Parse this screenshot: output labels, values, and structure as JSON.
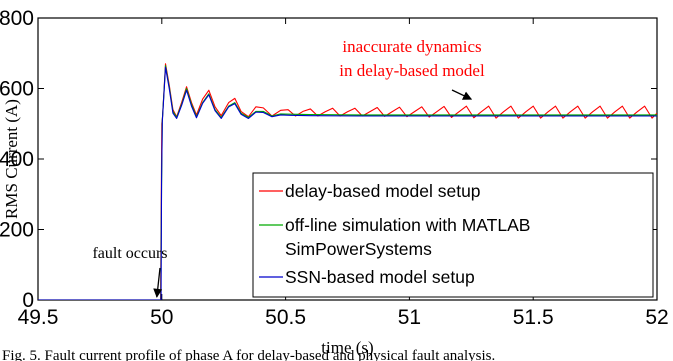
{
  "chart_data": {
    "type": "line",
    "title": "",
    "xlabel": "time (s)",
    "ylabel": "RMS Current (A)",
    "xlim": [
      49.5,
      52
    ],
    "ylim": [
      0,
      800
    ],
    "xticks": [
      49.5,
      50,
      50.5,
      51,
      51.5,
      52
    ],
    "yticks": [
      0,
      200,
      400,
      600,
      800
    ],
    "xtick_labels": [
      "49.5",
      "50",
      "50.5",
      "51",
      "51.5",
      "52"
    ],
    "ytick_labels": [
      "0",
      "200",
      "400",
      "600",
      "800"
    ],
    "grid": false,
    "legend_position": "bottom-right",
    "series": [
      {
        "name": "delay-based model setup",
        "color": "#ff0000",
        "points": [
          [
            49.5,
            0
          ],
          [
            49.85,
            0
          ],
          [
            49.99,
            0
          ],
          [
            49.995,
            0
          ],
          [
            49.998,
            300
          ],
          [
            50.0,
            500
          ],
          [
            50.003,
            520
          ],
          [
            50.015,
            670
          ],
          [
            50.03,
            610
          ],
          [
            50.045,
            540
          ],
          [
            50.06,
            520
          ],
          [
            50.08,
            560
          ],
          [
            50.1,
            605
          ],
          [
            50.12,
            560
          ],
          [
            50.14,
            525
          ],
          [
            50.165,
            570
          ],
          [
            50.19,
            595
          ],
          [
            50.215,
            548
          ],
          [
            50.24,
            523
          ],
          [
            50.27,
            560
          ],
          [
            50.295,
            572
          ],
          [
            50.32,
            535
          ],
          [
            50.35,
            520
          ],
          [
            50.38,
            548
          ],
          [
            50.41,
            545
          ],
          [
            50.445,
            522
          ],
          [
            50.48,
            538
          ],
          [
            50.51,
            540
          ],
          [
            50.54,
            522
          ],
          [
            50.57,
            535
          ],
          [
            50.6,
            542
          ],
          [
            50.63,
            522
          ],
          [
            50.66,
            534
          ],
          [
            50.69,
            544
          ],
          [
            50.72,
            522
          ],
          [
            50.75,
            534
          ],
          [
            50.78,
            544
          ],
          [
            50.81,
            522
          ],
          [
            50.84,
            534
          ],
          [
            50.87,
            546
          ],
          [
            50.9,
            521
          ],
          [
            50.93,
            534
          ],
          [
            50.96,
            547
          ],
          [
            50.99,
            520
          ],
          [
            51.02,
            534
          ],
          [
            51.05,
            548
          ],
          [
            51.08,
            519
          ],
          [
            51.11,
            534
          ],
          [
            51.14,
            549
          ],
          [
            51.17,
            518
          ],
          [
            51.2,
            534
          ],
          [
            51.23,
            550
          ],
          [
            51.26,
            517
          ],
          [
            51.29,
            534
          ],
          [
            51.32,
            550
          ],
          [
            51.35,
            516
          ],
          [
            51.38,
            534
          ],
          [
            51.41,
            550
          ],
          [
            51.44,
            516
          ],
          [
            51.47,
            534
          ],
          [
            51.5,
            550
          ],
          [
            51.53,
            516
          ],
          [
            51.56,
            534
          ],
          [
            51.59,
            550
          ],
          [
            51.62,
            516
          ],
          [
            51.65,
            534
          ],
          [
            51.68,
            550
          ],
          [
            51.71,
            516
          ],
          [
            51.74,
            534
          ],
          [
            51.77,
            550
          ],
          [
            51.8,
            516
          ],
          [
            51.83,
            534
          ],
          [
            51.86,
            550
          ],
          [
            51.89,
            516
          ],
          [
            51.92,
            534
          ],
          [
            51.95,
            550
          ],
          [
            51.98,
            516
          ],
          [
            52.0,
            530
          ]
        ]
      },
      {
        "name": "off-line simulation with MATLAB SimPowerSystems",
        "color": "#00aa00",
        "points": [
          [
            49.5,
            0
          ],
          [
            49.99,
            0
          ],
          [
            49.996,
            0
          ],
          [
            49.999,
            320
          ],
          [
            50.002,
            510
          ],
          [
            50.015,
            665
          ],
          [
            50.03,
            605
          ],
          [
            50.045,
            535
          ],
          [
            50.06,
            518
          ],
          [
            50.08,
            555
          ],
          [
            50.1,
            600
          ],
          [
            50.12,
            555
          ],
          [
            50.14,
            520
          ],
          [
            50.165,
            560
          ],
          [
            50.19,
            585
          ],
          [
            50.215,
            540
          ],
          [
            50.24,
            518
          ],
          [
            50.27,
            550
          ],
          [
            50.295,
            560
          ],
          [
            50.32,
            530
          ],
          [
            50.35,
            518
          ],
          [
            50.38,
            535
          ],
          [
            50.41,
            535
          ],
          [
            50.445,
            522
          ],
          [
            50.48,
            528
          ],
          [
            50.52,
            527
          ],
          [
            50.6,
            526
          ],
          [
            50.8,
            525
          ],
          [
            51.0,
            525
          ],
          [
            51.2,
            525
          ],
          [
            51.4,
            525
          ],
          [
            51.6,
            525
          ],
          [
            51.8,
            525
          ],
          [
            52.0,
            525
          ]
        ]
      },
      {
        "name": "SSN-based model setup",
        "color": "#0000cc",
        "points": [
          [
            49.5,
            0
          ],
          [
            49.99,
            0
          ],
          [
            49.997,
            0
          ],
          [
            49.999,
            330
          ],
          [
            50.002,
            505
          ],
          [
            50.015,
            660
          ],
          [
            50.03,
            600
          ],
          [
            50.045,
            530
          ],
          [
            50.06,
            515
          ],
          [
            50.08,
            552
          ],
          [
            50.1,
            595
          ],
          [
            50.12,
            550
          ],
          [
            50.14,
            517
          ],
          [
            50.165,
            558
          ],
          [
            50.19,
            582
          ],
          [
            50.215,
            537
          ],
          [
            50.24,
            515
          ],
          [
            50.27,
            548
          ],
          [
            50.295,
            557
          ],
          [
            50.32,
            527
          ],
          [
            50.35,
            515
          ],
          [
            50.38,
            533
          ],
          [
            50.41,
            532
          ],
          [
            50.445,
            520
          ],
          [
            50.48,
            525
          ],
          [
            50.52,
            524
          ],
          [
            50.6,
            523
          ],
          [
            50.8,
            522
          ],
          [
            51.0,
            522
          ],
          [
            51.2,
            522
          ],
          [
            51.4,
            522
          ],
          [
            51.6,
            522
          ],
          [
            51.8,
            522
          ],
          [
            52.0,
            522
          ]
        ]
      }
    ],
    "annotations": [
      {
        "lines": [
          "inaccurate dynamics",
          "in delay-based model"
        ],
        "color": "#ff0000",
        "arrow_to": [
          51.25,
          530
        ]
      },
      {
        "lines": [
          "fault occurs"
        ],
        "color": "#000000",
        "arrow_to": [
          49.98,
          0
        ]
      }
    ]
  },
  "legend": {
    "entries": [
      {
        "lines": [
          "delay-based model setup"
        ],
        "color": "#ff0000"
      },
      {
        "lines": [
          "off-line simulation with MATLAB",
          "SimPowerSystems"
        ],
        "color": "#00aa00"
      },
      {
        "lines": [
          "SSN-based model setup"
        ],
        "color": "#0000cc"
      }
    ]
  },
  "caption": "Fig. 5.   Fault current profile of phase A for delay-based and physical fault analysis."
}
